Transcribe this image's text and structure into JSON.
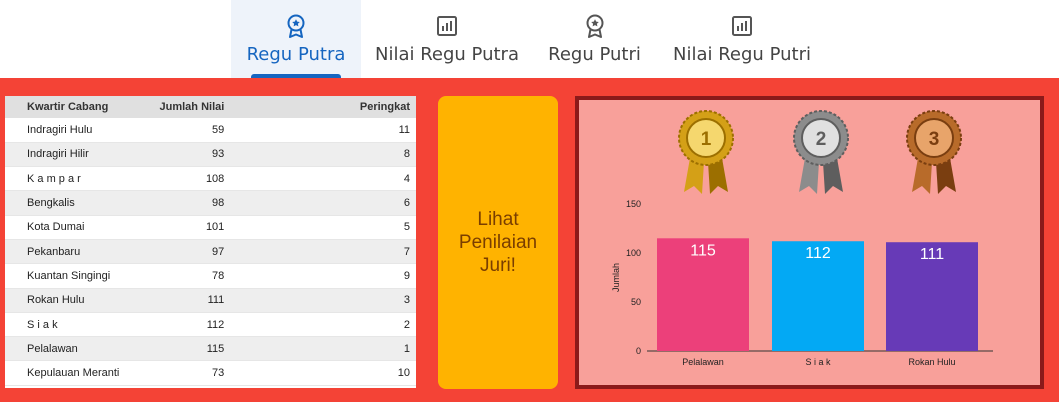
{
  "tabs": [
    {
      "label": "Regu Putra",
      "icon": "award-icon",
      "active": true
    },
    {
      "label": "Nilai Regu Putra",
      "icon": "bar-chart-icon",
      "active": false
    },
    {
      "label": "Regu Putri",
      "icon": "award-icon",
      "active": false
    },
    {
      "label": "Nilai Regu Putri",
      "icon": "bar-chart-icon",
      "active": false
    }
  ],
  "table": {
    "headers": [
      "Kwartir Cabang",
      "Jumlah Nilai",
      "Peringkat"
    ],
    "rows": [
      [
        "Indragiri Hulu",
        "59",
        "11"
      ],
      [
        "Indragiri Hilir",
        "93",
        "8"
      ],
      [
        "K a m p a r",
        "108",
        "4"
      ],
      [
        "Bengkalis",
        "98",
        "6"
      ],
      [
        "Kota Dumai",
        "101",
        "5"
      ],
      [
        "Pekanbaru",
        "97",
        "7"
      ],
      [
        "Kuantan Singingi",
        "78",
        "9"
      ],
      [
        "Rokan Hulu",
        "111",
        "3"
      ],
      [
        "S i a k",
        "112",
        "2"
      ],
      [
        "Pelalawan",
        "115",
        "1"
      ],
      [
        "Kepulauan Meranti",
        "73",
        "10"
      ]
    ]
  },
  "button": {
    "label": "Lihat\nPenilaian\nJuri!"
  },
  "medals": [
    "gold-medal-icon",
    "silver-medal-icon",
    "bronze-medal-icon"
  ],
  "medal_numbers": [
    "1",
    "2",
    "3"
  ],
  "colors": {
    "main_bg": "#f44336",
    "button_bg": "#ffb300",
    "chart_panel_bg": "#f8a09a",
    "active_tab": "#1565c0"
  },
  "chart_data": {
    "type": "bar",
    "categories": [
      "Pelalawan",
      "S i a k",
      "Rokan Hulu"
    ],
    "values": [
      115,
      112,
      111
    ],
    "colors": [
      "#ec407a",
      "#03a9f4",
      "#673ab7"
    ],
    "ylabel": "Jumlah",
    "ylim": [
      0,
      150
    ],
    "yticks": [
      0,
      50,
      100,
      150
    ],
    "grid": false
  }
}
